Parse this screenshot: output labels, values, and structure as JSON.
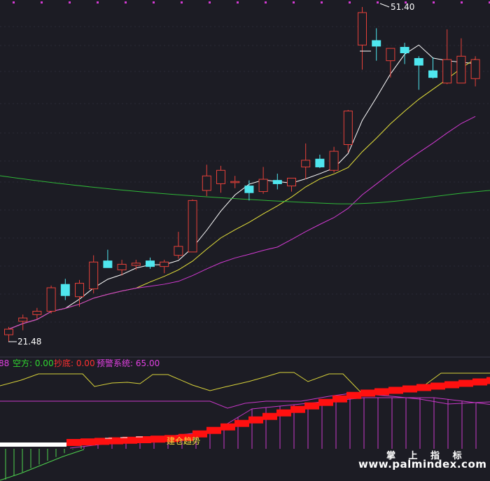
{
  "colors": {
    "background": "#1c1c24",
    "up": "#e8413a",
    "down": "#4fe6ee",
    "ma_white": "#ffffff",
    "ma_yellow": "#e6e23a",
    "ma_magenta": "#d23ad2",
    "ma_green": "#2fb838",
    "ind_yellow": "#d8d23a",
    "ind_magenta": "#c838c8",
    "ind_green": "#4ed44e",
    "ind_red": "#ff1010",
    "text_green": "#30d630",
    "text_red": "#ff3030",
    "text_magenta": "#e040e0"
  },
  "chart_data": {
    "type": "candlestick",
    "candles": [
      {
        "o": 22.1,
        "h": 22.8,
        "l": 21.48,
        "c": 22.6
      },
      {
        "o": 23.3,
        "h": 23.9,
        "l": 22.5,
        "c": 23.6
      },
      {
        "o": 23.9,
        "h": 24.5,
        "l": 23.5,
        "c": 24.2
      },
      {
        "o": 24.2,
        "h": 26.5,
        "l": 24.0,
        "c": 26.3
      },
      {
        "o": 26.6,
        "h": 27.1,
        "l": 25.2,
        "c": 25.6
      },
      {
        "o": 25.5,
        "h": 27.0,
        "l": 24.6,
        "c": 26.7
      },
      {
        "o": 26.2,
        "h": 29.2,
        "l": 25.8,
        "c": 28.6
      },
      {
        "o": 28.7,
        "h": 29.7,
        "l": 28.1,
        "c": 28.1
      },
      {
        "o": 27.9,
        "h": 28.8,
        "l": 27.4,
        "c": 28.4
      },
      {
        "o": 28.3,
        "h": 28.8,
        "l": 27.9,
        "c": 28.5
      },
      {
        "o": 28.7,
        "h": 29.0,
        "l": 28.0,
        "c": 28.2
      },
      {
        "o": 28.2,
        "h": 28.8,
        "l": 27.6,
        "c": 28.6
      },
      {
        "o": 29.2,
        "h": 31.3,
        "l": 28.9,
        "c": 30.0
      },
      {
        "o": 29.5,
        "h": 34.2,
        "l": 29.5,
        "c": 34.1
      },
      {
        "o": 35.0,
        "h": 37.3,
        "l": 34.5,
        "c": 36.3
      },
      {
        "o": 35.6,
        "h": 37.2,
        "l": 34.8,
        "c": 36.8
      },
      {
        "o": 35.7,
        "h": 36.3,
        "l": 35.2,
        "c": 35.8
      },
      {
        "o": 35.4,
        "h": 35.9,
        "l": 34.1,
        "c": 34.8
      },
      {
        "o": 34.9,
        "h": 37.1,
        "l": 34.7,
        "c": 36.0
      },
      {
        "o": 35.9,
        "h": 36.5,
        "l": 35.1,
        "c": 35.6
      },
      {
        "o": 35.4,
        "h": 36.1,
        "l": 34.9,
        "c": 36.1
      },
      {
        "o": 37.1,
        "h": 39.2,
        "l": 36.0,
        "c": 37.7
      },
      {
        "o": 37.8,
        "h": 38.2,
        "l": 37.0,
        "c": 37.1
      },
      {
        "o": 36.8,
        "h": 38.9,
        "l": 36.6,
        "c": 38.5
      },
      {
        "o": 39.1,
        "h": 42.2,
        "l": 38.4,
        "c": 42.1
      },
      {
        "o": 48.0,
        "h": 51.4,
        "l": 45.8,
        "c": 50.9
      },
      {
        "o": 48.4,
        "h": 49.5,
        "l": 46.6,
        "c": 47.9
      },
      {
        "o": 46.6,
        "h": 47.6,
        "l": 45.1,
        "c": 47.7
      },
      {
        "o": 47.8,
        "h": 48.2,
        "l": 46.3,
        "c": 47.3
      },
      {
        "o": 46.8,
        "h": 47.0,
        "l": 44.0,
        "c": 46.2
      },
      {
        "o": 45.7,
        "h": 46.9,
        "l": 45.0,
        "c": 45.1
      },
      {
        "o": 44.6,
        "h": 49.4,
        "l": 44.5,
        "c": 46.7
      },
      {
        "o": 44.6,
        "h": 48.6,
        "l": 44.6,
        "c": 47.0
      },
      {
        "o": 45.0,
        "h": 47.0,
        "l": 44.3,
        "c": 46.7
      }
    ],
    "annotations": {
      "high": "51.40",
      "low": "21.48"
    },
    "indicator_legend": [
      {
        "text": "88",
        "color": "#e040e0"
      },
      {
        "text": "空方: 0.00",
        "color": "#30d630"
      },
      {
        "text": "抄底: 0.00",
        "color": "#ff3030"
      },
      {
        "text": "预警系统: 65.00",
        "color": "#e040e0"
      }
    ],
    "indicator_label": "建仓趋势"
  },
  "watermark": {
    "title": "掌 上 指 标",
    "url": "www.palmindex.com"
  }
}
